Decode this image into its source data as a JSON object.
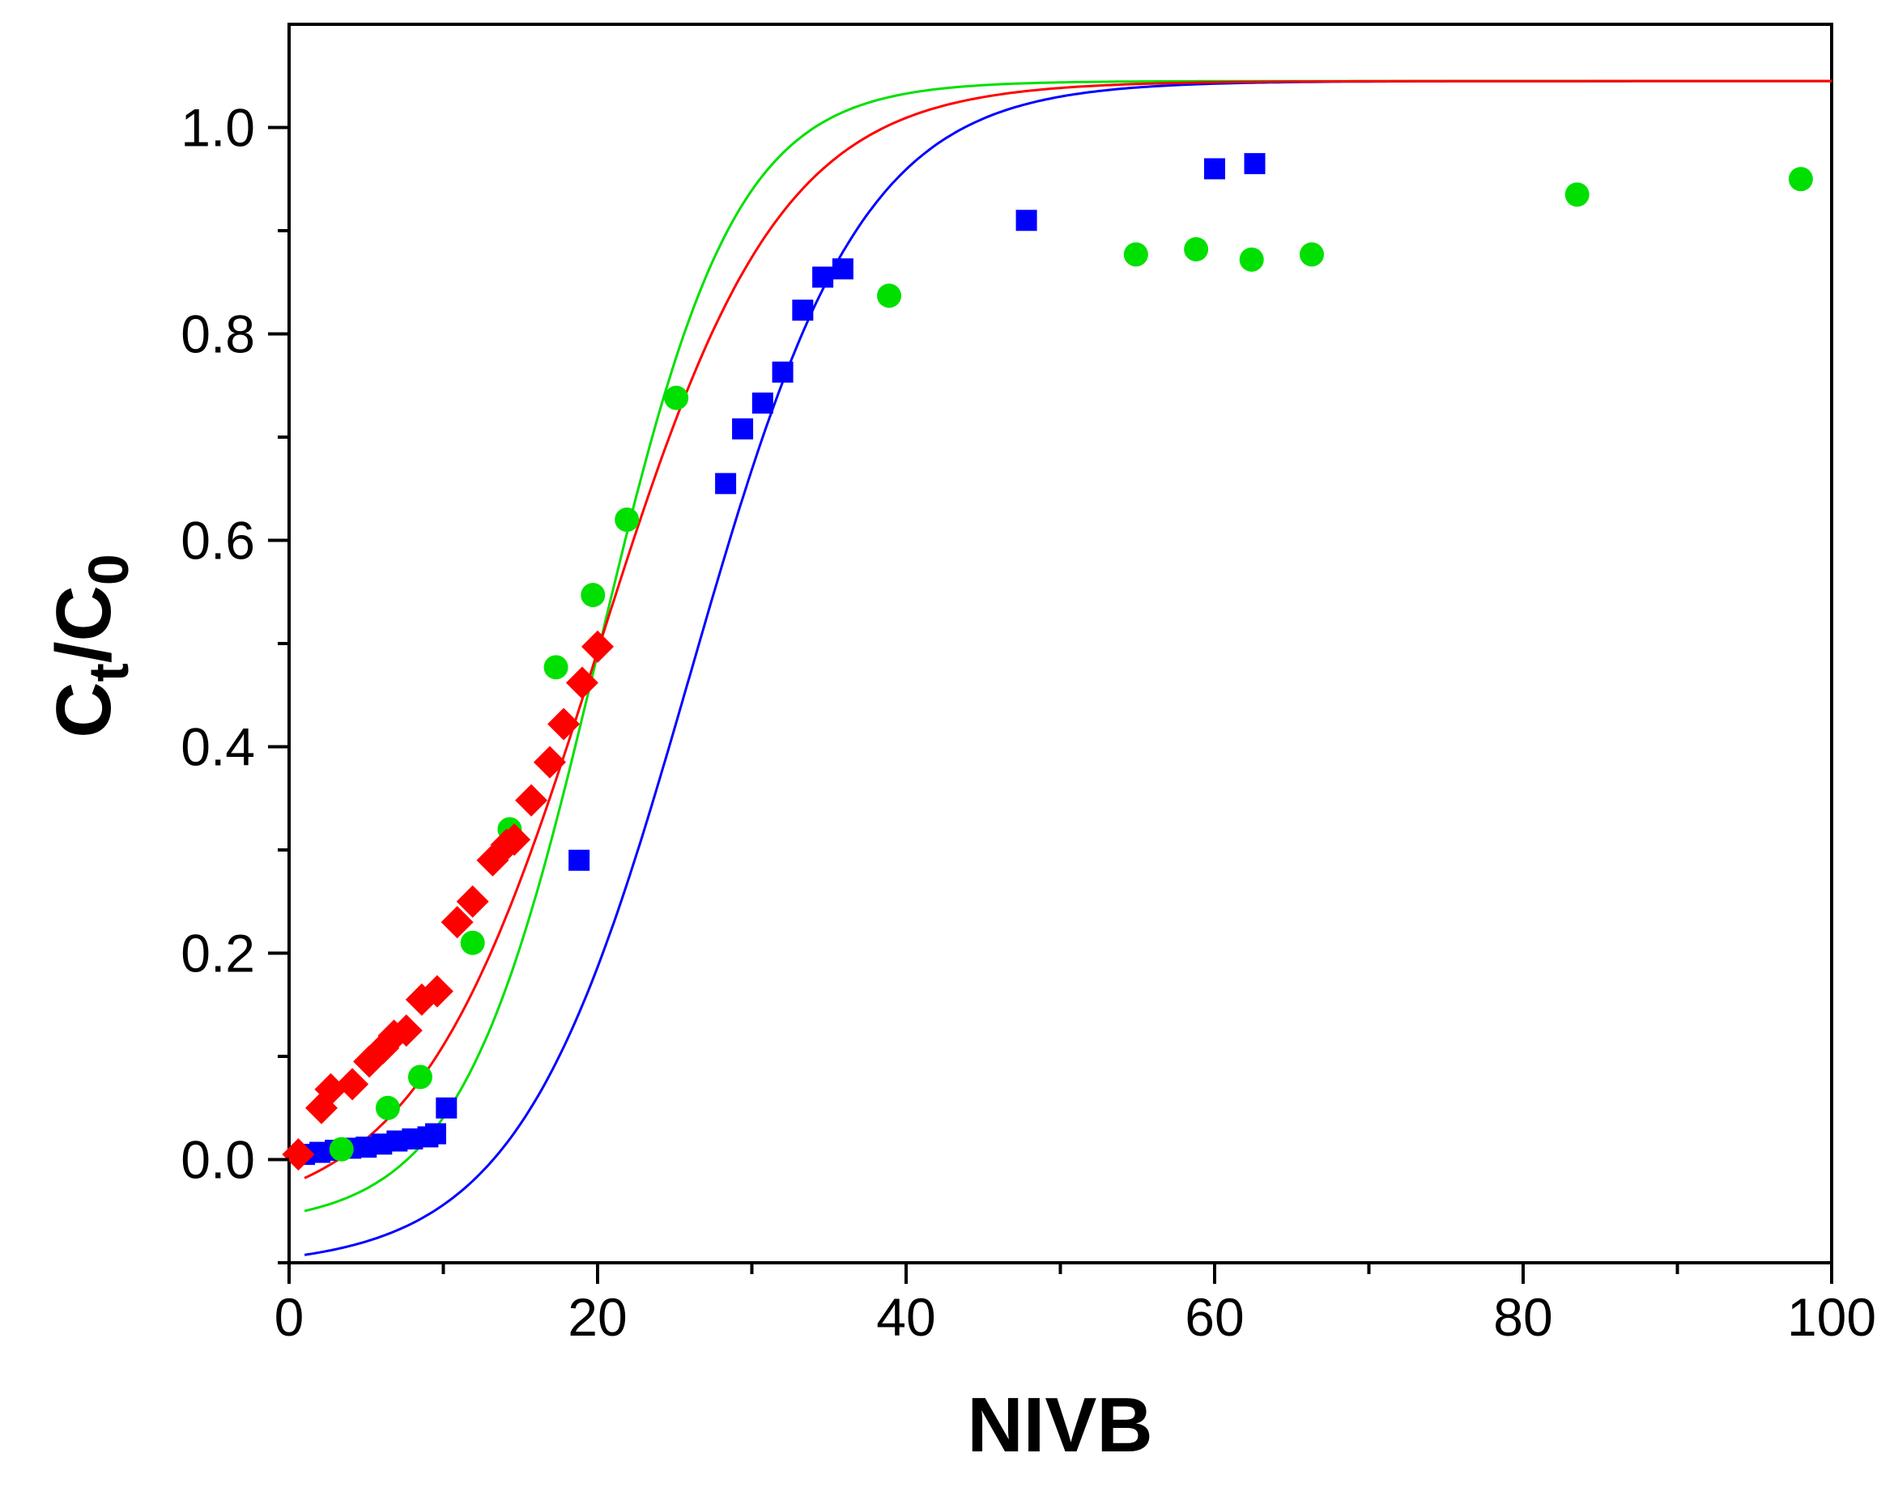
{
  "chart_data": {
    "type": "scatter",
    "title": "",
    "xlabel": "NIVB",
    "ylabel": {
      "main": "C",
      "sub1": "t",
      "slash": "/C",
      "sub2": "0"
    },
    "xlim": [
      0,
      100
    ],
    "ylim": [
      -0.1,
      1.1
    ],
    "xticks": [
      0,
      20,
      40,
      60,
      80,
      100
    ],
    "xtick_labels": [
      "0",
      "20",
      "40",
      "60",
      "80",
      "100"
    ],
    "xminor": [
      10,
      30,
      50,
      70,
      90
    ],
    "yticks": [
      0.0,
      0.2,
      0.4,
      0.6,
      0.8,
      1.0
    ],
    "ytick_labels": [
      "0.0",
      "0.2",
      "0.4",
      "0.6",
      "0.8",
      "1.0"
    ],
    "yminor": [
      -0.1,
      0.1,
      0.3,
      0.5,
      0.7,
      0.9
    ],
    "grid": false,
    "series": [
      {
        "name": "blue squares",
        "marker": "square",
        "color": "#0000ff",
        "points": [
          [
            1.0,
            0.005
          ],
          [
            2.0,
            0.007
          ],
          [
            3.0,
            0.009
          ],
          [
            4.0,
            0.011
          ],
          [
            5.0,
            0.012
          ],
          [
            6.0,
            0.015
          ],
          [
            7.0,
            0.018
          ],
          [
            8.0,
            0.02
          ],
          [
            9.0,
            0.022
          ],
          [
            9.5,
            0.025
          ],
          [
            10.2,
            0.05
          ],
          [
            18.8,
            0.29
          ],
          [
            28.3,
            0.655
          ],
          [
            29.4,
            0.708
          ],
          [
            30.7,
            0.733
          ],
          [
            32.0,
            0.763
          ],
          [
            33.3,
            0.823
          ],
          [
            34.6,
            0.855
          ],
          [
            35.9,
            0.863
          ],
          [
            47.8,
            0.91
          ],
          [
            60.0,
            0.96
          ],
          [
            62.6,
            0.965
          ]
        ]
      },
      {
        "name": "green circles",
        "marker": "circle",
        "color": "#00e000",
        "points": [
          [
            3.4,
            0.01
          ],
          [
            6.4,
            0.05
          ],
          [
            8.5,
            0.08
          ],
          [
            11.9,
            0.21
          ],
          [
            14.3,
            0.32
          ],
          [
            17.3,
            0.477
          ],
          [
            19.7,
            0.547
          ],
          [
            21.9,
            0.62
          ],
          [
            25.1,
            0.738
          ],
          [
            38.9,
            0.837
          ],
          [
            54.9,
            0.877
          ],
          [
            58.8,
            0.882
          ],
          [
            62.4,
            0.872
          ],
          [
            66.3,
            0.877
          ],
          [
            83.5,
            0.935
          ],
          [
            98.0,
            0.95
          ]
        ]
      },
      {
        "name": "red diamonds",
        "marker": "diamond",
        "color": "#ff0000",
        "points": [
          [
            0.6,
            0.005
          ],
          [
            2.1,
            0.05
          ],
          [
            2.7,
            0.068
          ],
          [
            4.1,
            0.073
          ],
          [
            5.2,
            0.095
          ],
          [
            6.1,
            0.108
          ],
          [
            6.8,
            0.12
          ],
          [
            7.6,
            0.125
          ],
          [
            8.6,
            0.155
          ],
          [
            9.6,
            0.163
          ],
          [
            10.9,
            0.23
          ],
          [
            11.9,
            0.25
          ],
          [
            13.2,
            0.29
          ],
          [
            14.1,
            0.305
          ],
          [
            14.6,
            0.31
          ],
          [
            15.7,
            0.348
          ],
          [
            16.9,
            0.385
          ],
          [
            17.8,
            0.422
          ],
          [
            19.0,
            0.462
          ],
          [
            20.0,
            0.497
          ]
        ]
      }
    ],
    "fits": [
      {
        "name": "blue fit",
        "color": "#0000ff",
        "x0": 26.0,
        "k": 0.18,
        "A": -0.105,
        "B": 1.045,
        "x_range": [
          1,
          100
        ]
      },
      {
        "name": "green fit",
        "color": "#00e000",
        "x0": 20.0,
        "k": 0.225,
        "A": -0.065,
        "B": 1.045,
        "x_range": [
          1,
          100
        ]
      },
      {
        "name": "red fit",
        "color": "#ff0000",
        "x0": 20.0,
        "k": 0.17,
        "A": -0.06,
        "B": 1.045,
        "x_range": [
          1,
          100
        ]
      }
    ]
  }
}
